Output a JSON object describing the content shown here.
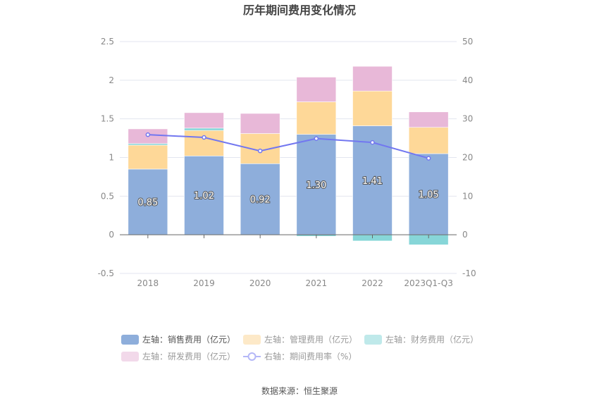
{
  "chart_data": {
    "type": "bar",
    "title": "历年期间费用变化情况",
    "categories": [
      "2018",
      "2019",
      "2020",
      "2021",
      "2022",
      "2023Q1-Q3"
    ],
    "left_axis": {
      "ylim": [
        -0.5,
        2.5
      ],
      "ticks": [
        "-0.5",
        "0",
        "0.5",
        "1",
        "1.5",
        "2",
        "2.5"
      ]
    },
    "right_axis": {
      "ylim": [
        -10,
        50
      ],
      "ticks": [
        "-10",
        "0",
        "10",
        "20",
        "30",
        "40",
        "50"
      ]
    },
    "grid": true,
    "legend_placement": "bottom",
    "series": [
      {
        "name": "左轴：销售费用（亿元）",
        "type": "bar",
        "axis": "left",
        "color": "#8eaedb",
        "values": [
          0.85,
          1.02,
          0.92,
          1.3,
          1.41,
          1.05
        ],
        "labels": [
          "0.85",
          "1.02",
          "0.92",
          "1.30",
          "1.41",
          "1.05"
        ]
      },
      {
        "name": "左轴：管理费用（亿元）",
        "type": "bar",
        "axis": "left",
        "color": "#fed898",
        "legend_color": "#fde9c8",
        "values": [
          0.31,
          0.33,
          0.39,
          0.42,
          0.45,
          0.34
        ]
      },
      {
        "name": "左轴：财务费用（亿元）",
        "type": "bar",
        "axis": "left",
        "color": "#87d6d8",
        "legend_color": "#bfe9ea",
        "values": [
          0.02,
          0.03,
          0.0,
          -0.02,
          -0.08,
          -0.13
        ]
      },
      {
        "name": "左轴：研发费用（亿元）",
        "type": "bar",
        "axis": "left",
        "color": "#e8b8d8",
        "legend_color": "#f2d9ea",
        "values": [
          0.19,
          0.2,
          0.26,
          0.32,
          0.32,
          0.2
        ]
      },
      {
        "name": "右轴：期间费用率（%）",
        "type": "line",
        "axis": "right",
        "color": "#7277f0",
        "values": [
          25.9,
          25.2,
          21.7,
          24.9,
          23.9,
          19.8
        ]
      }
    ],
    "source": "数据来源：恒生聚源"
  }
}
